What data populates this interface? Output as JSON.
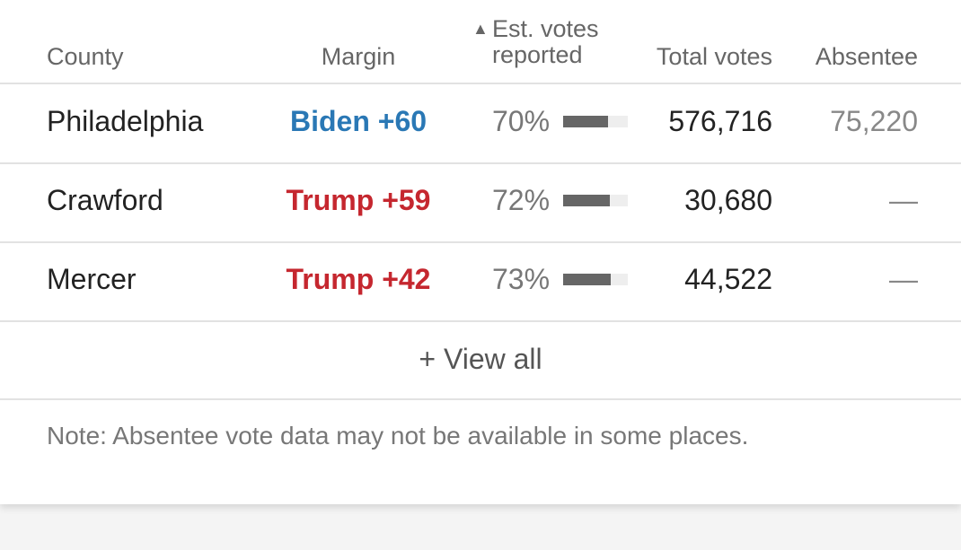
{
  "header": {
    "county": "County",
    "margin": "Margin",
    "reported": "Est. votes reported",
    "total": "Total votes",
    "absentee": "Absentee"
  },
  "reported_lim": [
    0,
    100
  ],
  "rows": [
    {
      "county": "Philadelphia",
      "margin": "Biden +60",
      "margin_color": "#2a78b5",
      "reported": {
        "value": 70,
        "label": "70%"
      },
      "total": "576,716",
      "absentee": "75,220"
    },
    {
      "county": "Crawford",
      "margin": "Trump +59",
      "margin_color": "#c5272f",
      "reported": {
        "value": 72,
        "label": "72%"
      },
      "total": "30,680",
      "absentee": "—"
    },
    {
      "county": "Mercer",
      "margin": "Trump +42",
      "margin_color": "#c5272f",
      "reported": {
        "value": 73,
        "label": "73%"
      },
      "total": "44,522",
      "absentee": "—"
    }
  ],
  "view_all": "+ View all",
  "note": "Note: Absentee vote data may not be available in some places."
}
